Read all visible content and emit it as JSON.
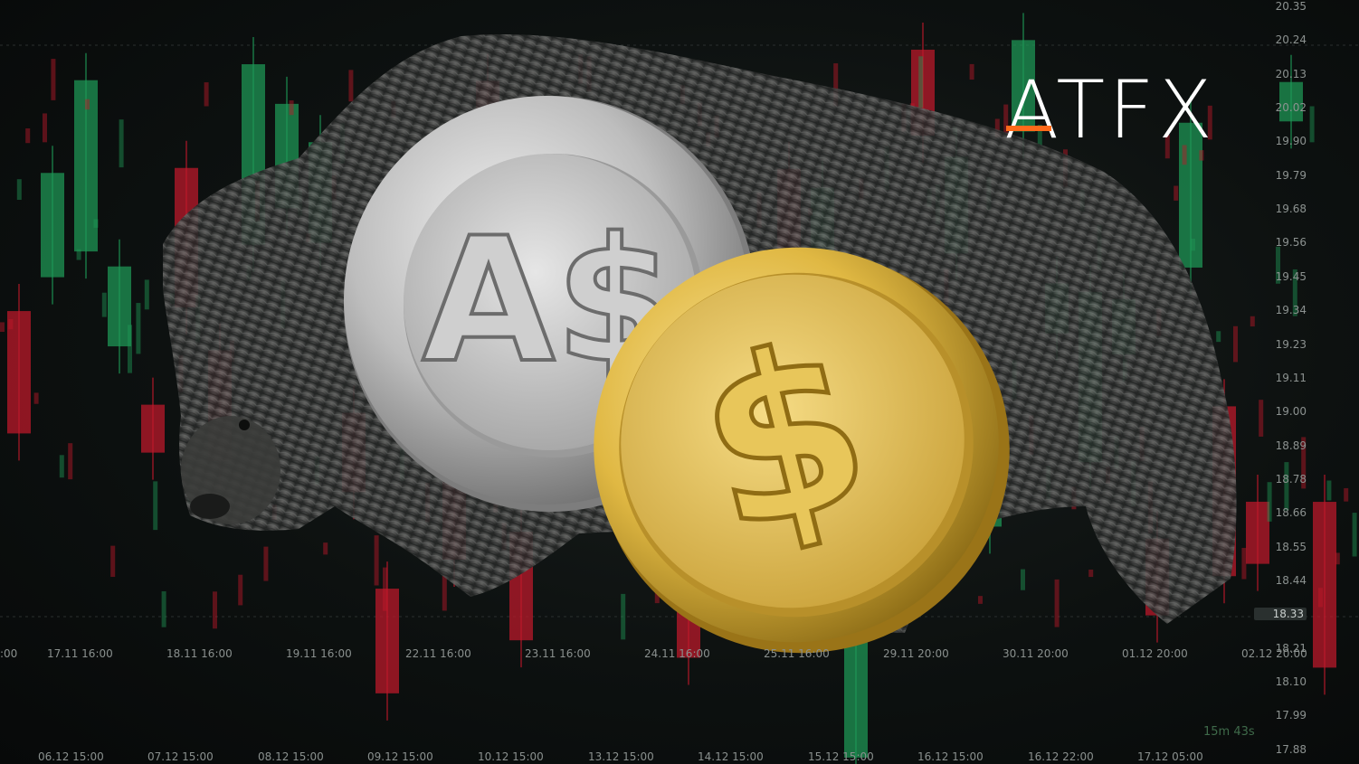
{
  "brand": {
    "logo_text": "ATFX",
    "accent_color": "#ff6a1a"
  },
  "price_axis": [
    "20.35",
    "20.24",
    "20.13",
    "20.02",
    "19.90",
    "19.79",
    "19.68",
    "19.56",
    "19.45",
    "19.34",
    "19.23",
    "19.11",
    "19.00",
    "18.89",
    "18.78",
    "18.66",
    "18.55",
    "18.44",
    "18.33",
    "18.21",
    "18.10",
    "17.99",
    "17.88"
  ],
  "current_price": "18.33",
  "time_axis_upper": [
    ":00",
    "17.11 16:00",
    "18.11 16:00",
    "19.11 16:00",
    "22.11 16:00",
    "23.11 16:00",
    "24.11 16:00",
    "25.11 16:00",
    "29.11 20:00",
    "30.11 20:00",
    "01.12 20:00",
    "02.12 20:00"
  ],
  "time_axis_lower": [
    "06.12 15:00",
    "07.12 15:00",
    "08.12 15:00",
    "09.12 15:00",
    "10.12 15:00",
    "13.12 15:00",
    "14.12 15:00",
    "15.12 15:00",
    "16.12 15:00",
    "16.12 22:00",
    "17.12 05:00"
  ],
  "countdown": "15m 43s",
  "coins": {
    "silver_symbol": "A$",
    "gold_symbol": "$"
  },
  "colors": {
    "bull": "#1e9a57",
    "bear": "#c0192b",
    "silver": "#c8c8c8",
    "gold": "#e9c55a"
  },
  "icons": [
    "bear-image",
    "aud-coin",
    "usd-coin"
  ]
}
